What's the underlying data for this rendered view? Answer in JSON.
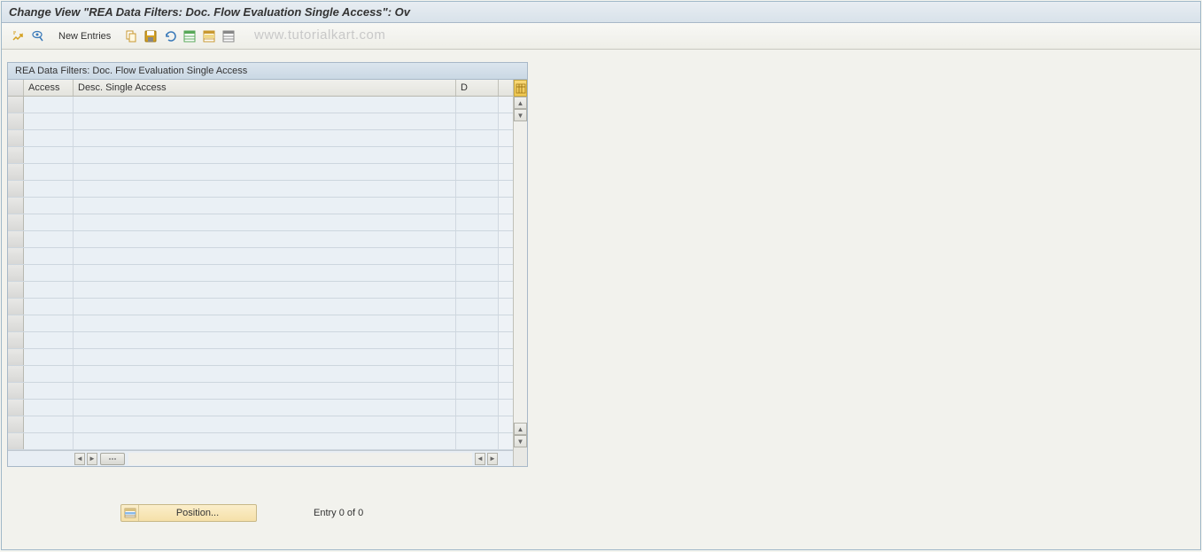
{
  "title": "Change View \"REA Data Filters: Doc. Flow Evaluation Single Access\": Ov",
  "toolbar": {
    "new_entries_label": "New Entries"
  },
  "watermark": "www.tutorialkart.com",
  "table": {
    "title": "REA Data Filters: Doc. Flow Evaluation Single Access",
    "columns": {
      "access": "Access",
      "desc": "Desc. Single Access",
      "d": "D"
    },
    "row_count": 21
  },
  "footer": {
    "position_label": "Position...",
    "entry_text": "Entry 0 of 0"
  },
  "colors": {
    "title_bg_top": "#e8edf2",
    "title_bg_bottom": "#d8e2ea",
    "panel_border": "#a8b8c8",
    "row_bg": "#eaf0f5",
    "position_btn_top": "#fbeecb",
    "position_btn_bottom": "#f5e0a8"
  }
}
